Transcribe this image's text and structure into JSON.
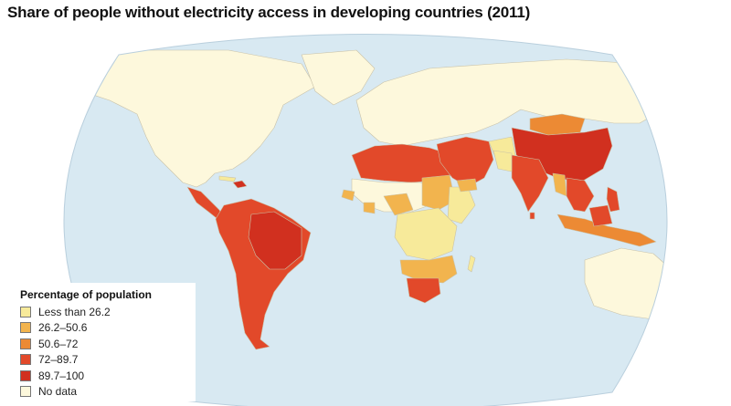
{
  "title": "Share of people without electricity access in developing countries (2011)",
  "colors": {
    "ocean": "#d8e9f2",
    "land_nodata": "#fdf8dc",
    "border": "#c9c2a8"
  },
  "legend": {
    "title": "Percentage of population",
    "items": [
      {
        "label": "Less than 26.2",
        "color": "#f7ea9a"
      },
      {
        "label": "26.2–50.6",
        "color": "#f2b44e"
      },
      {
        "label": "50.6–72",
        "color": "#ec8a34"
      },
      {
        "label": "72–89.7",
        "color": "#e2492a"
      },
      {
        "label": "89.7–100",
        "color": "#d1301f"
      },
      {
        "label": "No data",
        "color": "#fdf8dc"
      }
    ]
  }
}
